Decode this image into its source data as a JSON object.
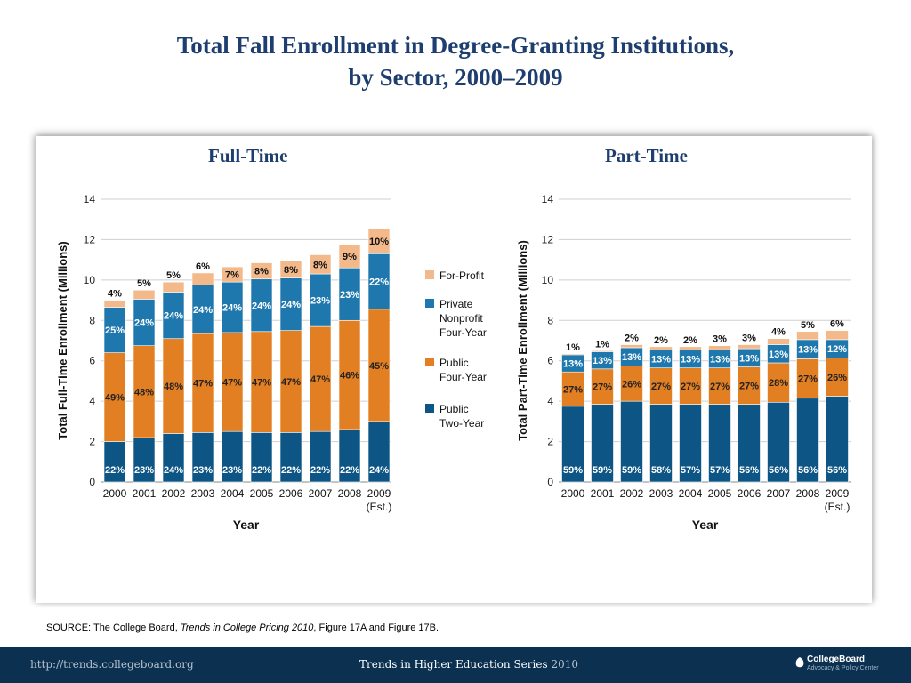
{
  "page": {
    "title_line1": "Total Fall Enrollment in Degree-Granting Institutions,",
    "title_line2": "by Sector, 2000–2009",
    "source_prefix": "SOURCE: The College Board, ",
    "source_italic": "Trends in College Pricing 2010",
    "source_suffix": ", Figure 17A and Figure 17B.",
    "footer_url": "http://trends.collegeboard.org",
    "footer_series": "Trends in Higher Education Series",
    "footer_year": "2010",
    "logo_name": "CollegeBoard",
    "logo_sub": "Advocacy & Policy Center"
  },
  "chart_data": [
    {
      "type": "bar",
      "stacked": true,
      "panel_title": "Full-Time",
      "xlabel": "Year",
      "ylabel": "Total Full-Time Enrollment (Millions)",
      "ylim": [
        0,
        14
      ],
      "yticks": [
        0,
        2,
        4,
        6,
        8,
        10,
        12,
        14
      ],
      "grid": true,
      "categories": [
        "2000",
        "2001",
        "2002",
        "2003",
        "2004",
        "2005",
        "2006",
        "2007",
        "2008",
        "2009"
      ],
      "est_label": "(Est.)",
      "series": [
        {
          "name": "Public Two-Year",
          "color": "#0d5585",
          "values": [
            2.0,
            2.2,
            2.4,
            2.45,
            2.5,
            2.45,
            2.45,
            2.5,
            2.6,
            3.0
          ],
          "labels": [
            "22%",
            "23%",
            "24%",
            "23%",
            "23%",
            "22%",
            "22%",
            "22%",
            "22%",
            "24%"
          ]
        },
        {
          "name": "Public Four-Year",
          "color": "#e27f22",
          "values": [
            4.4,
            4.55,
            4.7,
            4.9,
            4.9,
            5.0,
            5.05,
            5.2,
            5.4,
            5.55
          ],
          "labels": [
            "49%",
            "48%",
            "48%",
            "47%",
            "47%",
            "47%",
            "47%",
            "47%",
            "46%",
            "45%"
          ]
        },
        {
          "name": "Private Nonprofit Four-Year",
          "color": "#1f78ad",
          "values": [
            2.25,
            2.3,
            2.3,
            2.4,
            2.5,
            2.6,
            2.6,
            2.6,
            2.6,
            2.75
          ],
          "labels": [
            "25%",
            "24%",
            "24%",
            "24%",
            "24%",
            "24%",
            "24%",
            "23%",
            "23%",
            "22%"
          ]
        },
        {
          "name": "For-Profit",
          "color": "#f3b98b",
          "values": [
            0.35,
            0.45,
            0.5,
            0.6,
            0.75,
            0.8,
            0.85,
            0.95,
            1.15,
            1.25
          ],
          "labels": [
            "4%",
            "5%",
            "5%",
            "6%",
            "7%",
            "8%",
            "8%",
            "8%",
            "9%",
            "10%"
          ]
        }
      ]
    },
    {
      "type": "bar",
      "stacked": true,
      "panel_title": "Part-Time",
      "xlabel": "Year",
      "ylabel": "Total Part-Time Enrollment (Millions)",
      "ylim": [
        0,
        14
      ],
      "yticks": [
        0,
        2,
        4,
        6,
        8,
        10,
        12,
        14
      ],
      "grid": true,
      "categories": [
        "2000",
        "2001",
        "2002",
        "2003",
        "2004",
        "2005",
        "2006",
        "2007",
        "2008",
        "2009"
      ],
      "est_label": "(Est.)",
      "series": [
        {
          "name": "Public Two-Year",
          "color": "#0d5585",
          "values": [
            3.75,
            3.85,
            4.0,
            3.85,
            3.85,
            3.85,
            3.85,
            3.95,
            4.15,
            4.25
          ],
          "labels": [
            "59%",
            "59%",
            "59%",
            "58%",
            "57%",
            "57%",
            "56%",
            "56%",
            "56%",
            "56%"
          ]
        },
        {
          "name": "Public Four-Year",
          "color": "#e27f22",
          "values": [
            1.7,
            1.75,
            1.75,
            1.8,
            1.8,
            1.8,
            1.85,
            1.95,
            1.95,
            1.9
          ],
          "labels": [
            "27%",
            "27%",
            "26%",
            "27%",
            "27%",
            "27%",
            "27%",
            "28%",
            "27%",
            "26%"
          ]
        },
        {
          "name": "Private Nonprofit Four-Year",
          "color": "#1f78ad",
          "values": [
            0.85,
            0.85,
            0.9,
            0.9,
            0.9,
            0.9,
            0.9,
            0.9,
            0.95,
            0.9
          ],
          "labels": [
            "13%",
            "13%",
            "13%",
            "13%",
            "13%",
            "13%",
            "13%",
            "13%",
            "13%",
            "12%"
          ]
        },
        {
          "name": "For-Profit",
          "color": "#f3b98b",
          "values": [
            0.05,
            0.05,
            0.15,
            0.15,
            0.15,
            0.2,
            0.2,
            0.3,
            0.4,
            0.45
          ],
          "labels": [
            "1%",
            "1%",
            "2%",
            "2%",
            "2%",
            "3%",
            "3%",
            "4%",
            "5%",
            "6%"
          ]
        }
      ]
    }
  ],
  "legend": [
    {
      "lines": [
        "For-Profit"
      ],
      "color": "#f3b98b"
    },
    {
      "lines": [
        "Private",
        "Nonprofit",
        "Four-Year"
      ],
      "color": "#1f78ad"
    },
    {
      "lines": [
        "Public",
        "Four-Year"
      ],
      "color": "#e27f22"
    },
    {
      "lines": [
        "Public",
        "Two-Year"
      ],
      "color": "#0d5585"
    }
  ]
}
